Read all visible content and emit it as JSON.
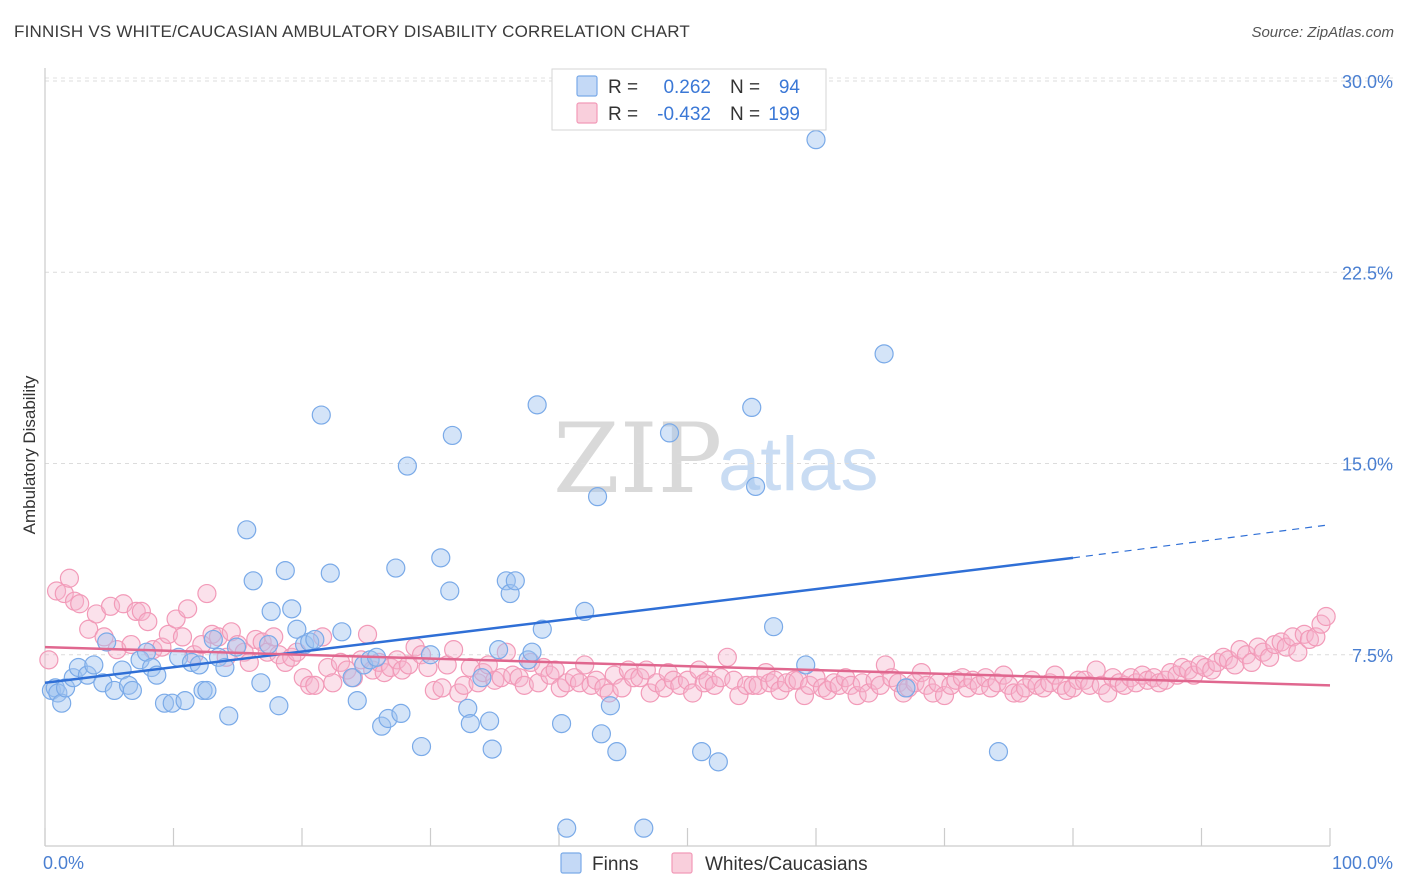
{
  "header": {
    "title": "FINNISH VS WHITE/CAUCASIAN AMBULATORY DISABILITY CORRELATION CHART",
    "source": "Source: ZipAtlas.com"
  },
  "watermark": {
    "zip": "ZIP",
    "atlas": "atlas"
  },
  "legend_box": {
    "rows": [
      {
        "r_label": "R =",
        "r_value": "0.262",
        "n_label": "N =",
        "n_value": "94",
        "color": "#7aaae8"
      },
      {
        "r_label": "R =",
        "r_value": "-0.432",
        "n_label": "N =",
        "n_value": "199",
        "color": "#f29ab8"
      }
    ]
  },
  "bottom_legend": [
    {
      "label": "Finns",
      "color": "#7aaae8"
    },
    {
      "label": "Whites/Caucasians",
      "color": "#f29ab8"
    }
  ],
  "chart_data": {
    "type": "scatter",
    "title": "FINNISH VS WHITE/CAUCASIAN AMBULATORY DISABILITY CORRELATION CHART",
    "ylabel": "Ambulatory Disability",
    "xlabel": "",
    "xlim": [
      0,
      100
    ],
    "ylim": [
      0,
      31.5
    ],
    "x_tick_labels": [
      "0.0%",
      "100.0%"
    ],
    "y_ticks": [
      7.5,
      15.0,
      22.5,
      30.0
    ],
    "y_tick_labels": [
      "7.5%",
      "15.0%",
      "22.5%",
      "30.0%"
    ],
    "grid": "horizontal dashed",
    "legend_position": "top-center",
    "series": [
      {
        "name": "Finns",
        "color": "#7aaae8",
        "line_color": "#2f6fd6",
        "trend": {
          "x0": 0,
          "y0": 6.4,
          "x1": 80,
          "y1": 11.3,
          "dashed_to_x": 100,
          "dashed_to_y": 12.6
        },
        "points": [
          [
            0.5,
            6.1
          ],
          [
            0.8,
            6.2
          ],
          [
            1.0,
            6.0
          ],
          [
            1.3,
            5.6
          ],
          [
            1.6,
            6.2
          ],
          [
            2.2,
            6.6
          ],
          [
            2.6,
            7.0
          ],
          [
            3.3,
            6.7
          ],
          [
            3.8,
            7.1
          ],
          [
            4.5,
            6.4
          ],
          [
            4.8,
            8.0
          ],
          [
            5.4,
            6.1
          ],
          [
            6.0,
            6.9
          ],
          [
            6.5,
            6.3
          ],
          [
            6.8,
            6.1
          ],
          [
            7.4,
            7.3
          ],
          [
            7.9,
            7.6
          ],
          [
            8.3,
            7.0
          ],
          [
            8.7,
            6.7
          ],
          [
            9.3,
            5.6
          ],
          [
            9.9,
            5.6
          ],
          [
            10.4,
            7.4
          ],
          [
            10.9,
            5.7
          ],
          [
            11.4,
            7.2
          ],
          [
            12.0,
            7.1
          ],
          [
            12.3,
            6.1
          ],
          [
            12.6,
            6.1
          ],
          [
            13.1,
            8.1
          ],
          [
            13.5,
            7.4
          ],
          [
            14.0,
            7.0
          ],
          [
            14.3,
            5.1
          ],
          [
            14.9,
            7.8
          ],
          [
            15.7,
            12.4
          ],
          [
            16.2,
            10.4
          ],
          [
            16.8,
            6.4
          ],
          [
            17.4,
            7.9
          ],
          [
            17.6,
            9.2
          ],
          [
            18.2,
            5.5
          ],
          [
            18.7,
            10.8
          ],
          [
            19.2,
            9.3
          ],
          [
            19.6,
            8.5
          ],
          [
            20.2,
            7.9
          ],
          [
            20.6,
            8.0
          ],
          [
            21.0,
            8.1
          ],
          [
            21.5,
            16.9
          ],
          [
            22.2,
            10.7
          ],
          [
            23.1,
            8.4
          ],
          [
            23.9,
            6.6
          ],
          [
            24.3,
            5.7
          ],
          [
            24.8,
            7.1
          ],
          [
            25.3,
            7.3
          ],
          [
            25.8,
            7.4
          ],
          [
            26.2,
            4.7
          ],
          [
            26.7,
            5.0
          ],
          [
            27.3,
            10.9
          ],
          [
            27.7,
            5.2
          ],
          [
            28.2,
            14.9
          ],
          [
            29.3,
            3.9
          ],
          [
            30.0,
            7.5
          ],
          [
            30.8,
            11.3
          ],
          [
            31.5,
            10.0
          ],
          [
            31.7,
            16.1
          ],
          [
            32.9,
            5.4
          ],
          [
            33.1,
            4.8
          ],
          [
            34.0,
            6.6
          ],
          [
            34.6,
            4.9
          ],
          [
            34.8,
            3.8
          ],
          [
            35.3,
            7.7
          ],
          [
            35.9,
            10.4
          ],
          [
            36.2,
            9.9
          ],
          [
            36.6,
            10.4
          ],
          [
            37.6,
            7.3
          ],
          [
            37.9,
            7.6
          ],
          [
            38.3,
            17.3
          ],
          [
            38.7,
            8.5
          ],
          [
            40.2,
            4.8
          ],
          [
            40.6,
            0.7
          ],
          [
            42.0,
            9.2
          ],
          [
            43.0,
            13.7
          ],
          [
            43.3,
            4.4
          ],
          [
            44.0,
            5.5
          ],
          [
            44.5,
            3.7
          ],
          [
            46.6,
            0.7
          ],
          [
            48.6,
            16.2
          ],
          [
            51.1,
            3.7
          ],
          [
            52.4,
            3.3
          ],
          [
            55.0,
            17.2
          ],
          [
            55.3,
            14.1
          ],
          [
            56.7,
            8.6
          ],
          [
            60.0,
            27.7
          ],
          [
            65.3,
            19.3
          ],
          [
            67.0,
            6.2
          ],
          [
            74.2,
            3.7
          ],
          [
            59.2,
            7.1
          ]
        ]
      },
      {
        "name": "Whites/Caucasians",
        "color": "#f29ab8",
        "line_color": "#e0678f",
        "trend": {
          "x0": 0,
          "y0": 7.8,
          "x1": 100,
          "y1": 6.3
        },
        "points": [
          [
            0.3,
            7.3
          ],
          [
            0.9,
            10.0
          ],
          [
            1.5,
            9.9
          ],
          [
            1.9,
            10.5
          ],
          [
            2.3,
            9.6
          ],
          [
            2.7,
            9.5
          ],
          [
            3.4,
            8.5
          ],
          [
            4.0,
            9.1
          ],
          [
            4.6,
            8.2
          ],
          [
            5.1,
            9.4
          ],
          [
            5.6,
            7.7
          ],
          [
            6.1,
            9.5
          ],
          [
            6.7,
            7.9
          ],
          [
            7.1,
            9.2
          ],
          [
            7.5,
            9.2
          ],
          [
            8.0,
            8.8
          ],
          [
            8.4,
            7.7
          ],
          [
            9.1,
            7.8
          ],
          [
            9.6,
            8.3
          ],
          [
            10.2,
            8.9
          ],
          [
            10.7,
            8.2
          ],
          [
            11.1,
            9.3
          ],
          [
            11.6,
            7.5
          ],
          [
            12.2,
            7.9
          ],
          [
            12.6,
            9.9
          ],
          [
            13.0,
            8.3
          ],
          [
            13.5,
            8.2
          ],
          [
            14.1,
            7.4
          ],
          [
            14.5,
            8.4
          ],
          [
            15.0,
            7.9
          ],
          [
            15.5,
            7.6
          ],
          [
            15.9,
            7.2
          ],
          [
            16.4,
            8.1
          ],
          [
            16.9,
            8.0
          ],
          [
            17.3,
            7.6
          ],
          [
            17.8,
            8.2
          ],
          [
            18.2,
            7.5
          ],
          [
            18.7,
            7.2
          ],
          [
            19.2,
            7.4
          ],
          [
            19.6,
            7.6
          ],
          [
            20.1,
            6.6
          ],
          [
            20.6,
            6.3
          ],
          [
            21.0,
            6.3
          ],
          [
            21.6,
            8.2
          ],
          [
            22.0,
            7.0
          ],
          [
            22.4,
            6.4
          ],
          [
            23.0,
            7.2
          ],
          [
            23.5,
            6.9
          ],
          [
            24.0,
            6.6
          ],
          [
            24.6,
            7.3
          ],
          [
            25.1,
            8.3
          ],
          [
            25.5,
            6.9
          ],
          [
            26.0,
            7.2
          ],
          [
            26.4,
            6.8
          ],
          [
            26.9,
            7.0
          ],
          [
            27.4,
            7.3
          ],
          [
            27.8,
            6.9
          ],
          [
            28.3,
            7.1
          ],
          [
            28.8,
            7.8
          ],
          [
            29.3,
            7.5
          ],
          [
            29.8,
            7.0
          ],
          [
            30.3,
            6.1
          ],
          [
            30.9,
            6.2
          ],
          [
            31.3,
            7.1
          ],
          [
            31.8,
            7.7
          ],
          [
            32.2,
            6.0
          ],
          [
            32.6,
            6.3
          ],
          [
            33.1,
            7.0
          ],
          [
            33.7,
            6.4
          ],
          [
            34.1,
            6.8
          ],
          [
            34.5,
            7.1
          ],
          [
            35.0,
            6.5
          ],
          [
            35.5,
            6.6
          ],
          [
            35.9,
            7.6
          ],
          [
            36.4,
            6.7
          ],
          [
            36.9,
            6.6
          ],
          [
            37.3,
            6.3
          ],
          [
            37.8,
            7.2
          ],
          [
            38.4,
            6.4
          ],
          [
            38.8,
            7.0
          ],
          [
            39.3,
            6.7
          ],
          [
            39.7,
            6.9
          ],
          [
            40.1,
            6.2
          ],
          [
            40.6,
            6.4
          ],
          [
            41.2,
            6.6
          ],
          [
            41.6,
            6.4
          ],
          [
            42.0,
            7.1
          ],
          [
            42.5,
            6.3
          ],
          [
            42.9,
            6.5
          ],
          [
            43.5,
            6.2
          ],
          [
            43.9,
            6.0
          ],
          [
            44.3,
            6.7
          ],
          [
            44.9,
            6.2
          ],
          [
            45.4,
            6.9
          ],
          [
            45.8,
            6.6
          ],
          [
            46.3,
            6.6
          ],
          [
            46.8,
            6.9
          ],
          [
            47.1,
            6.0
          ],
          [
            47.6,
            6.4
          ],
          [
            48.2,
            6.2
          ],
          [
            48.5,
            6.8
          ],
          [
            48.9,
            6.5
          ],
          [
            49.4,
            6.3
          ],
          [
            50.0,
            6.5
          ],
          [
            50.4,
            6.0
          ],
          [
            50.9,
            6.9
          ],
          [
            51.3,
            6.4
          ],
          [
            51.6,
            6.5
          ],
          [
            52.1,
            6.3
          ],
          [
            52.6,
            6.6
          ],
          [
            53.1,
            7.4
          ],
          [
            53.6,
            6.5
          ],
          [
            54.0,
            5.9
          ],
          [
            54.6,
            6.3
          ],
          [
            55.1,
            6.3
          ],
          [
            55.5,
            6.3
          ],
          [
            56.1,
            6.8
          ],
          [
            56.4,
            6.4
          ],
          [
            56.8,
            6.5
          ],
          [
            57.2,
            6.1
          ],
          [
            57.7,
            6.4
          ],
          [
            58.3,
            6.5
          ],
          [
            58.6,
            6.5
          ],
          [
            59.1,
            5.9
          ],
          [
            59.5,
            6.3
          ],
          [
            60.0,
            6.6
          ],
          [
            60.5,
            6.2
          ],
          [
            60.9,
            6.1
          ],
          [
            61.4,
            6.4
          ],
          [
            61.8,
            6.3
          ],
          [
            62.3,
            6.6
          ],
          [
            62.7,
            6.3
          ],
          [
            63.2,
            5.9
          ],
          [
            63.6,
            6.4
          ],
          [
            64.1,
            6.0
          ],
          [
            64.6,
            6.5
          ],
          [
            65.0,
            6.3
          ],
          [
            65.4,
            7.1
          ],
          [
            65.9,
            6.6
          ],
          [
            66.4,
            6.4
          ],
          [
            66.8,
            6.0
          ],
          [
            67.2,
            6.2
          ],
          [
            67.7,
            6.4
          ],
          [
            68.2,
            6.8
          ],
          [
            68.6,
            6.3
          ],
          [
            69.1,
            6.0
          ],
          [
            69.5,
            6.4
          ],
          [
            70.0,
            5.9
          ],
          [
            70.5,
            6.3
          ],
          [
            70.9,
            6.5
          ],
          [
            71.4,
            6.6
          ],
          [
            71.8,
            6.2
          ],
          [
            72.2,
            6.5
          ],
          [
            72.7,
            6.3
          ],
          [
            73.2,
            6.6
          ],
          [
            73.6,
            6.2
          ],
          [
            74.1,
            6.4
          ],
          [
            74.6,
            6.7
          ],
          [
            75.0,
            6.3
          ],
          [
            75.4,
            6.0
          ],
          [
            75.9,
            6.0
          ],
          [
            76.3,
            6.2
          ],
          [
            76.8,
            6.5
          ],
          [
            77.2,
            6.3
          ],
          [
            77.7,
            6.2
          ],
          [
            78.2,
            6.4
          ],
          [
            78.6,
            6.7
          ],
          [
            79.1,
            6.3
          ],
          [
            79.5,
            6.1
          ],
          [
            80.0,
            6.2
          ],
          [
            80.4,
            6.5
          ],
          [
            80.9,
            6.5
          ],
          [
            81.3,
            6.3
          ],
          [
            81.8,
            6.9
          ],
          [
            82.2,
            6.3
          ],
          [
            82.7,
            6.0
          ],
          [
            83.1,
            6.6
          ],
          [
            83.6,
            6.4
          ],
          [
            84.0,
            6.3
          ],
          [
            84.5,
            6.6
          ],
          [
            84.9,
            6.4
          ],
          [
            85.4,
            6.7
          ],
          [
            85.8,
            6.5
          ],
          [
            86.3,
            6.6
          ],
          [
            86.7,
            6.4
          ],
          [
            87.2,
            6.5
          ],
          [
            87.6,
            6.8
          ],
          [
            88.1,
            6.7
          ],
          [
            88.5,
            7.0
          ],
          [
            89.0,
            6.9
          ],
          [
            89.4,
            6.7
          ],
          [
            89.9,
            7.1
          ],
          [
            90.3,
            7.0
          ],
          [
            90.8,
            6.9
          ],
          [
            91.2,
            7.2
          ],
          [
            91.7,
            7.4
          ],
          [
            92.1,
            7.3
          ],
          [
            92.6,
            7.1
          ],
          [
            93.0,
            7.7
          ],
          [
            93.5,
            7.5
          ],
          [
            93.9,
            7.2
          ],
          [
            94.4,
            7.8
          ],
          [
            94.8,
            7.6
          ],
          [
            95.3,
            7.4
          ],
          [
            95.7,
            7.9
          ],
          [
            96.2,
            8.0
          ],
          [
            96.6,
            7.8
          ],
          [
            97.1,
            8.2
          ],
          [
            97.5,
            7.6
          ],
          [
            98.0,
            8.3
          ],
          [
            98.4,
            8.1
          ],
          [
            98.9,
            8.2
          ],
          [
            99.3,
            8.7
          ],
          [
            99.7,
            9.0
          ]
        ]
      }
    ]
  }
}
